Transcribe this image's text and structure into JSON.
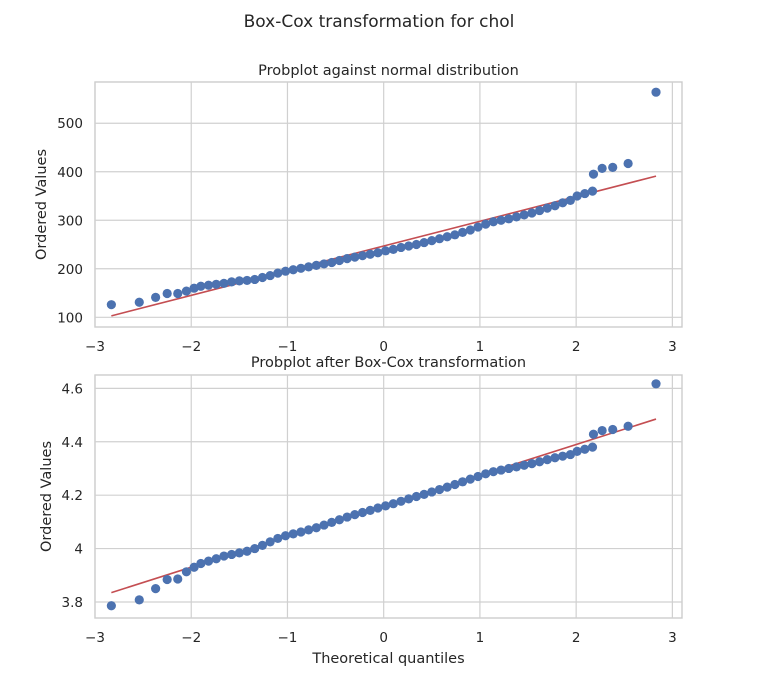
{
  "suptitle": "Box-Cox transformation for chol",
  "colors": {
    "points": "#4c72b0",
    "fit_line": "#c44e52",
    "grid": "#d0d0d0"
  },
  "chart_data": [
    {
      "type": "scatter",
      "title": "Probplot against normal distribution",
      "xlabel": "",
      "ylabel": "Ordered Values",
      "xlim": [
        -3.0,
        3.1
      ],
      "ylim": [
        80,
        585
      ],
      "x_ticks": [
        -3,
        -2,
        -1,
        0,
        1,
        2,
        3
      ],
      "y_ticks": [
        100,
        200,
        300,
        400,
        500
      ],
      "grid": true,
      "fit_line": {
        "x": [
          -2.83,
          2.83
        ],
        "y": [
          103,
          391
        ]
      },
      "points": [
        [
          -2.83,
          126
        ],
        [
          -2.54,
          131
        ],
        [
          -2.37,
          141
        ],
        [
          -2.25,
          149
        ],
        [
          -2.14,
          149
        ],
        [
          -2.05,
          154
        ],
        [
          -1.97,
          160
        ],
        [
          -1.9,
          164
        ],
        [
          -1.82,
          166
        ],
        [
          -1.74,
          168
        ],
        [
          -1.66,
          170
        ],
        [
          -1.58,
          173
        ],
        [
          -1.5,
          175
        ],
        [
          -1.42,
          176
        ],
        [
          -1.34,
          178
        ],
        [
          -1.26,
          182
        ],
        [
          -1.18,
          186
        ],
        [
          -1.1,
          191
        ],
        [
          -1.02,
          195
        ],
        [
          -0.94,
          198
        ],
        [
          -0.86,
          201
        ],
        [
          -0.78,
          204
        ],
        [
          -0.7,
          207
        ],
        [
          -0.62,
          210
        ],
        [
          -0.54,
          213
        ],
        [
          -0.46,
          217
        ],
        [
          -0.38,
          221
        ],
        [
          -0.3,
          224
        ],
        [
          -0.22,
          227
        ],
        [
          -0.14,
          230
        ],
        [
          -0.06,
          233
        ],
        [
          0.02,
          237
        ],
        [
          0.1,
          240
        ],
        [
          0.18,
          244
        ],
        [
          0.26,
          247
        ],
        [
          0.34,
          250
        ],
        [
          0.42,
          254
        ],
        [
          0.5,
          258
        ],
        [
          0.58,
          262
        ],
        [
          0.66,
          266
        ],
        [
          0.74,
          270
        ],
        [
          0.82,
          275
        ],
        [
          0.9,
          280
        ],
        [
          0.98,
          286
        ],
        [
          1.06,
          292
        ],
        [
          1.14,
          297
        ],
        [
          1.22,
          300
        ],
        [
          1.3,
          303
        ],
        [
          1.38,
          307
        ],
        [
          1.46,
          311
        ],
        [
          1.54,
          315
        ],
        [
          1.62,
          320
        ],
        [
          1.7,
          325
        ],
        [
          1.78,
          330
        ],
        [
          1.86,
          336
        ],
        [
          1.94,
          341
        ],
        [
          2.01,
          350
        ],
        [
          2.09,
          355
        ],
        [
          2.17,
          360
        ],
        [
          2.18,
          395
        ],
        [
          2.27,
          407
        ],
        [
          2.38,
          409
        ],
        [
          2.54,
          417
        ],
        [
          2.83,
          564
        ]
      ]
    },
    {
      "type": "scatter",
      "title": "Probplot after Box-Cox transformation",
      "xlabel": "Theoretical quantiles",
      "ylabel": "Ordered Values",
      "xlim": [
        -3.0,
        3.1
      ],
      "ylim": [
        3.74,
        4.65
      ],
      "x_ticks": [
        -3,
        -2,
        -1,
        0,
        1,
        2,
        3
      ],
      "y_ticks": [
        3.8,
        4.0,
        4.2,
        4.4,
        4.6
      ],
      "grid": true,
      "fit_line": {
        "x": [
          -2.83,
          2.83
        ],
        "y": [
          3.835,
          4.485
        ]
      },
      "points": [
        [
          -2.83,
          3.786
        ],
        [
          -2.54,
          3.808
        ],
        [
          -2.37,
          3.85
        ],
        [
          -2.25,
          3.884
        ],
        [
          -2.14,
          3.886
        ],
        [
          -2.05,
          3.913
        ],
        [
          -1.97,
          3.93
        ],
        [
          -1.9,
          3.944
        ],
        [
          -1.82,
          3.953
        ],
        [
          -1.74,
          3.962
        ],
        [
          -1.66,
          3.972
        ],
        [
          -1.58,
          3.978
        ],
        [
          -1.5,
          3.984
        ],
        [
          -1.42,
          3.99
        ],
        [
          -1.34,
          4.0
        ],
        [
          -1.26,
          4.012
        ],
        [
          -1.18,
          4.025
        ],
        [
          -1.1,
          4.038
        ],
        [
          -1.02,
          4.048
        ],
        [
          -0.94,
          4.055
        ],
        [
          -0.86,
          4.062
        ],
        [
          -0.78,
          4.07
        ],
        [
          -0.7,
          4.078
        ],
        [
          -0.62,
          4.088
        ],
        [
          -0.54,
          4.098
        ],
        [
          -0.46,
          4.108
        ],
        [
          -0.38,
          4.118
        ],
        [
          -0.3,
          4.127
        ],
        [
          -0.22,
          4.135
        ],
        [
          -0.14,
          4.143
        ],
        [
          -0.06,
          4.152
        ],
        [
          0.02,
          4.16
        ],
        [
          0.1,
          4.168
        ],
        [
          0.18,
          4.177
        ],
        [
          0.26,
          4.186
        ],
        [
          0.34,
          4.195
        ],
        [
          0.42,
          4.203
        ],
        [
          0.5,
          4.212
        ],
        [
          0.58,
          4.221
        ],
        [
          0.66,
          4.23
        ],
        [
          0.74,
          4.24
        ],
        [
          0.82,
          4.25
        ],
        [
          0.9,
          4.26
        ],
        [
          0.98,
          4.27
        ],
        [
          1.06,
          4.28
        ],
        [
          1.14,
          4.288
        ],
        [
          1.22,
          4.294
        ],
        [
          1.3,
          4.3
        ],
        [
          1.38,
          4.306
        ],
        [
          1.46,
          4.312
        ],
        [
          1.54,
          4.318
        ],
        [
          1.62,
          4.325
        ],
        [
          1.7,
          4.333
        ],
        [
          1.78,
          4.34
        ],
        [
          1.86,
          4.346
        ],
        [
          1.94,
          4.352
        ],
        [
          2.01,
          4.364
        ],
        [
          2.09,
          4.372
        ],
        [
          2.17,
          4.38
        ],
        [
          2.18,
          4.428
        ],
        [
          2.27,
          4.442
        ],
        [
          2.38,
          4.446
        ],
        [
          2.54,
          4.458
        ],
        [
          2.83,
          4.617
        ]
      ]
    }
  ]
}
